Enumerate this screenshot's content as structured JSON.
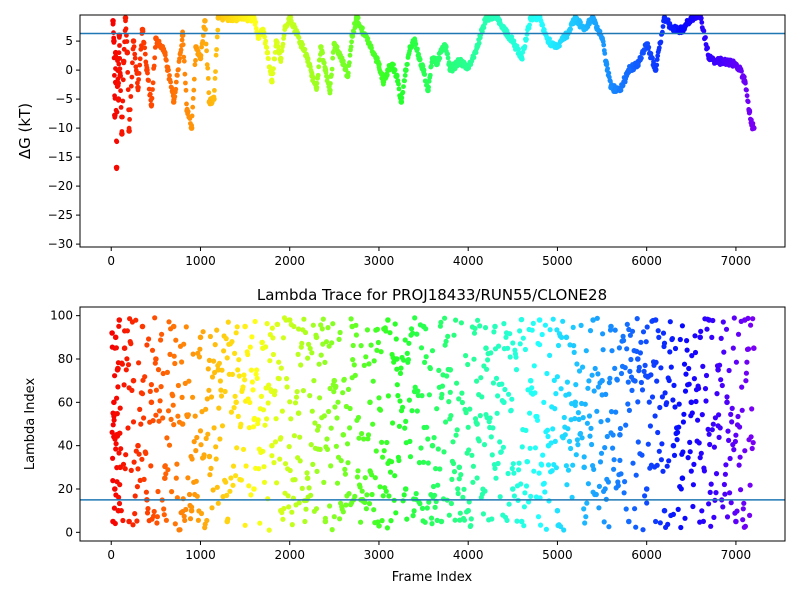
{
  "chart_data": [
    {
      "type": "scatter",
      "title": "",
      "xlabel": "",
      "ylabel": "ΔG (kT)",
      "xlim": [
        -350,
        7550
      ],
      "ylim": [
        -30.5,
        9.5
      ],
      "xticks": [
        0,
        1000,
        2000,
        3000,
        4000,
        5000,
        6000,
        7000
      ],
      "yticks": [
        5,
        0,
        -5,
        -10,
        -15,
        -20,
        -25,
        -30
      ],
      "xtick_labels": [
        "0",
        "1000",
        "2000",
        "3000",
        "4000",
        "5000",
        "6000",
        "7000"
      ],
      "ytick_labels": [
        "5",
        "0",
        "−5",
        "−10",
        "−15",
        "−20",
        "−25",
        "−30"
      ],
      "reference_line_y": 6.3,
      "reference_line_color": "#1f77b4",
      "color_map": "rainbow (red at frame 0 to violet at frame 7200)",
      "series": [
        {
          "x": [
            20,
            30,
            40,
            50,
            60,
            70,
            80,
            90,
            100,
            120,
            140,
            160,
            180,
            200,
            250,
            300,
            350,
            400,
            450,
            500,
            600,
            700,
            800,
            850,
            900,
            950,
            1000,
            1050,
            1100,
            1150,
            1200,
            1600,
            1650,
            1700,
            1750,
            1800,
            1850,
            1900,
            1950,
            2000,
            2200,
            2250,
            2300,
            2350,
            2400,
            2450,
            2500,
            2550,
            2600,
            2650,
            2700,
            2750,
            3000,
            3050,
            3100,
            3150,
            3200,
            3250,
            3300,
            3350,
            3400,
            3450,
            3500,
            3550,
            3600,
            3650,
            3700,
            3750,
            3800,
            3900,
            4000,
            4100,
            4200,
            4300,
            4400,
            4500,
            4600,
            4700,
            4800,
            4900,
            5000,
            5100,
            5200,
            5300,
            5400,
            5500,
            5550,
            5600,
            5650,
            5700,
            5800,
            5900,
            6000,
            6100,
            6200,
            6300,
            6400,
            6500,
            6600,
            6700,
            6800,
            6900,
            7000,
            7050,
            7100,
            7150,
            7180,
            7200
          ],
          "y": [
            8.5,
            5.0,
            -7.8,
            3.0,
            -16.8,
            2.0,
            -5.0,
            6.0,
            -1.0,
            -11.0,
            1.5,
            9.0,
            3.0,
            -10.5,
            5.0,
            -3.0,
            7.0,
            0.0,
            -6.0,
            5.5,
            3.0,
            -5.5,
            6.0,
            -7.0,
            -10.0,
            4.0,
            2.0,
            8.5,
            -5.5,
            -5.0,
            9.0,
            9.0,
            5.5,
            7.0,
            3.0,
            -2.0,
            5.0,
            2.0,
            7.5,
            9.0,
            2.0,
            -1.0,
            -3.0,
            4.0,
            0.0,
            -3.5,
            4.5,
            3.0,
            1.0,
            -1.0,
            6.0,
            9.0,
            1.0,
            -2.0,
            0.0,
            1.0,
            -1.0,
            -5.5,
            0.0,
            4.0,
            5.0,
            2.0,
            0.0,
            -3.5,
            2.0,
            1.0,
            3.5,
            4.0,
            0.0,
            1.5,
            0.5,
            4.0,
            9.0,
            9.5,
            7.0,
            5.0,
            2.0,
            9.0,
            9.0,
            5.0,
            4.0,
            6.0,
            9.0,
            7.0,
            9.0,
            5.5,
            1.0,
            -3.0,
            -3.2,
            -3.5,
            0.0,
            1.0,
            4.5,
            0.0,
            9.0,
            7.0,
            7.0,
            9.0,
            9.5,
            2.0,
            1.5,
            1.5,
            1.0,
            0.0,
            -2.0,
            -7.0,
            -9.5,
            -10.0
          ]
        }
      ]
    },
    {
      "type": "scatter",
      "title": "Lambda Trace for PROJ18433/RUN55/CLONE28",
      "xlabel": "Frame Index",
      "ylabel": "Lambda Index",
      "xlim": [
        -350,
        7550
      ],
      "ylim": [
        -4,
        104
      ],
      "xticks": [
        0,
        1000,
        2000,
        3000,
        4000,
        5000,
        6000,
        7000
      ],
      "yticks": [
        0,
        20,
        40,
        60,
        80,
        100
      ],
      "xtick_labels": [
        "0",
        "1000",
        "2000",
        "3000",
        "4000",
        "5000",
        "6000",
        "7000"
      ],
      "ytick_labels": [
        "0",
        "20",
        "40",
        "60",
        "80",
        "100"
      ],
      "reference_line_y": 15,
      "reference_line_color": "#1f77b4",
      "color_map": "rainbow (red at frame 0 to violet at frame 7200)",
      "series": [
        {
          "x": [
            10,
            20,
            30,
            40,
            50,
            60,
            70,
            80,
            90,
            100,
            150,
            200,
            250,
            300,
            350,
            400,
            450,
            500,
            600,
            700,
            800,
            900,
            1000,
            1100,
            1200,
            1300,
            1400,
            1500,
            1600,
            1700,
            1800,
            1900,
            2000,
            2100,
            2200,
            2300,
            2400,
            2500,
            2600,
            2700,
            2800,
            2900,
            3000,
            3100,
            3200,
            3300,
            3400,
            3500,
            3600,
            3700,
            3800,
            3900,
            4000,
            4100,
            4200,
            4300,
            4400,
            4500,
            4600,
            4700,
            4800,
            4900,
            5000,
            5100,
            5200,
            5300,
            5400,
            5500,
            5600,
            5700,
            5800,
            5900,
            6000,
            6100,
            6200,
            6300,
            6400,
            6500,
            6600,
            6700,
            6800,
            6900,
            7000,
            7100,
            7200
          ],
          "y": [
            92,
            5,
            60,
            20,
            90,
            45,
            75,
            10,
            98,
            30,
            85,
            5,
            70,
            40,
            95,
            15,
            60,
            80,
            25,
            95,
            50,
            10,
            90,
            35,
            75,
            5,
            60,
            95,
            20,
            85,
            40,
            10,
            98,
            55,
            25,
            90,
            5,
            70,
            45,
            95,
            15,
            60,
            3,
            98,
            80,
            20,
            65,
            95,
            40,
            5,
            75,
            30,
            10,
            50,
            85,
            95,
            60,
            20,
            5,
            70,
            98,
            40,
            10,
            90,
            60,
            30,
            98,
            70,
            95,
            45,
            5,
            80,
            20,
            98,
            10,
            40,
            25,
            60,
            90,
            98,
            75,
            60,
            5,
            98,
            85
          ]
        }
      ]
    }
  ]
}
